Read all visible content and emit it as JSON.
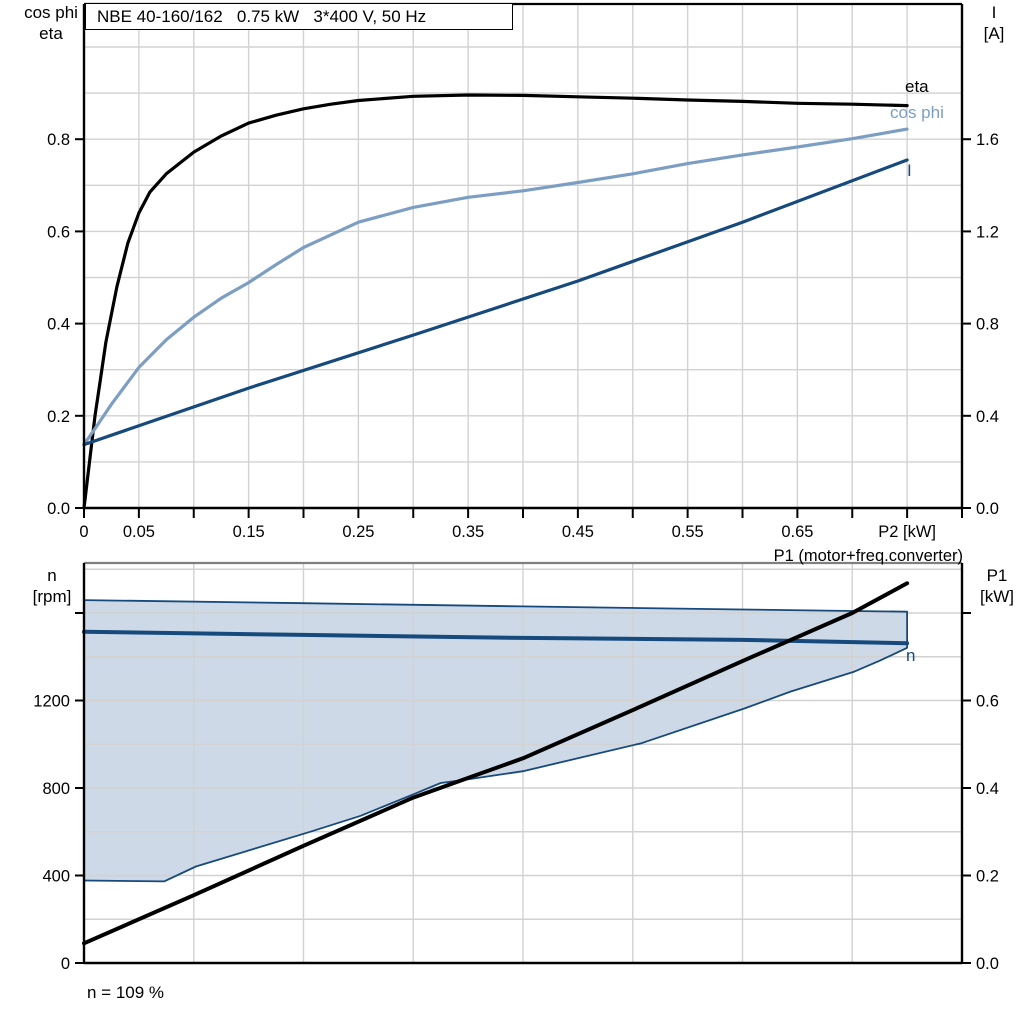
{
  "colors": {
    "black": "#000000",
    "dark_blue": "#16497C",
    "light_blue": "#7D9EC3",
    "grid": "#D2D2D2",
    "area_fill": "#CDD9E6",
    "frame_gray": "#7F7F7F"
  },
  "header": {
    "title": "NBE 40-160/162   0.75 kW   3*400 V, 50 Hz"
  },
  "top_chart": {
    "left_axis_title": [
      "cos phi",
      "eta"
    ],
    "right_axis_title": [
      "I",
      "[A]"
    ],
    "curve_labels": {
      "eta": "eta",
      "cos_phi": "cos phi",
      "current": "I"
    }
  },
  "bottom_chart": {
    "left_axis_title": [
      "n",
      "[rpm]"
    ],
    "right_axis_title": [
      "P1",
      "[kW]"
    ],
    "p1_curve_label": "P1 (motor+freq.converter)",
    "n_curve_label": "n"
  },
  "chart_data": [
    {
      "id": "top",
      "type": "line",
      "title": "NBE 40-160/162   0.75 kW   3*400 V, 50 Hz",
      "xlabel": "P2 [kW]",
      "x_range": [
        0,
        0.8
      ],
      "x_grid_step": 0.05,
      "x_tick_step": 0.05,
      "x_ticks": [
        {
          "value": 0,
          "label": "0"
        },
        {
          "value": 0.05,
          "label": "0.05"
        },
        {
          "value": 0.15,
          "label": "0.15"
        },
        {
          "value": 0.25,
          "label": "0.25"
        },
        {
          "value": 0.35,
          "label": "0.35"
        },
        {
          "value": 0.45,
          "label": "0.45"
        },
        {
          "value": 0.55,
          "label": "0.55"
        },
        {
          "value": 0.65,
          "label": "0.65"
        },
        {
          "value": 0.75,
          "label": "P2 [kW]"
        }
      ],
      "left_axis": {
        "title": "cos phi / eta",
        "max": 1.0933,
        "grid_step": 0.1,
        "tick_values": [
          0,
          0.2,
          0.4,
          0.6,
          0.8
        ],
        "ticks": [
          "0.0",
          "0.2",
          "0.4",
          "0.6",
          "0.8"
        ]
      },
      "right_axis": {
        "title": "I [A]",
        "max": 2.1866,
        "tick_values": [
          0,
          0.4,
          0.8,
          1.2,
          1.6
        ],
        "ticks": [
          "0.0",
          "0.4",
          "0.8",
          "1.2",
          "1.6"
        ]
      },
      "series": [
        {
          "name": "eta",
          "axis": "left",
          "color_key": "black",
          "width": 3.2,
          "points": [
            [
              0,
              0
            ],
            [
              0.005,
              0.1
            ],
            [
              0.01,
              0.2
            ],
            [
              0.015,
              0.28
            ],
            [
              0.02,
              0.36
            ],
            [
              0.03,
              0.48
            ],
            [
              0.04,
              0.575
            ],
            [
              0.05,
              0.64
            ],
            [
              0.06,
              0.685
            ],
            [
              0.075,
              0.725
            ],
            [
              0.1,
              0.772
            ],
            [
              0.125,
              0.807
            ],
            [
              0.15,
              0.835
            ],
            [
              0.175,
              0.852
            ],
            [
              0.2,
              0.866
            ],
            [
              0.225,
              0.876
            ],
            [
              0.25,
              0.884
            ],
            [
              0.3,
              0.893
            ],
            [
              0.35,
              0.896
            ],
            [
              0.4,
              0.895
            ],
            [
              0.45,
              0.892
            ],
            [
              0.5,
              0.889
            ],
            [
              0.55,
              0.885
            ],
            [
              0.6,
              0.882
            ],
            [
              0.65,
              0.878
            ],
            [
              0.7,
              0.876
            ],
            [
              0.75,
              0.873
            ]
          ]
        },
        {
          "name": "cos phi",
          "axis": "left",
          "color_key": "light_blue",
          "width": 3.2,
          "points": [
            [
              0,
              0.138
            ],
            [
              0.01,
              0.172
            ],
            [
              0.025,
              0.225
            ],
            [
              0.05,
              0.305
            ],
            [
              0.075,
              0.365
            ],
            [
              0.1,
              0.414
            ],
            [
              0.125,
              0.455
            ],
            [
              0.15,
              0.489
            ],
            [
              0.175,
              0.528
            ],
            [
              0.2,
              0.565
            ],
            [
              0.25,
              0.62
            ],
            [
              0.3,
              0.652
            ],
            [
              0.35,
              0.674
            ],
            [
              0.4,
              0.688
            ],
            [
              0.45,
              0.706
            ],
            [
              0.5,
              0.725
            ],
            [
              0.55,
              0.747
            ],
            [
              0.6,
              0.766
            ],
            [
              0.65,
              0.783
            ],
            [
              0.7,
              0.801
            ],
            [
              0.75,
              0.822
            ]
          ]
        },
        {
          "name": "I",
          "axis": "right",
          "color_key": "dark_blue",
          "width": 3.2,
          "points": [
            [
              0,
              0.275
            ],
            [
              0.15,
              0.52
            ],
            [
              0.3,
              0.75
            ],
            [
              0.45,
              0.985
            ],
            [
              0.6,
              1.24
            ],
            [
              0.75,
              1.51
            ]
          ]
        }
      ]
    },
    {
      "id": "bottom",
      "type": "line",
      "xlabel": "",
      "x_range": [
        0,
        0.8
      ],
      "x_grid_step": 0.1,
      "x_tick_step": null,
      "x_ticks": [],
      "left_axis": {
        "title": "n [rpm]",
        "max": 1828.6,
        "grid_step": 200,
        "tick_values": [
          0,
          400,
          800,
          1200
        ],
        "ticks": [
          "0",
          "400",
          "800",
          "1200"
        ],
        "unlabeled_tick_values": [
          1600
        ]
      },
      "right_axis": {
        "title": "P1 [kW]",
        "max": 0.9143,
        "tick_values": [
          0,
          0.2,
          0.4,
          0.6
        ],
        "ticks": [
          "0.0",
          "0.2",
          "0.4",
          "0.6"
        ],
        "unlabeled_tick_values": [
          0.8
        ]
      },
      "area": {
        "name": "speed-operating-range",
        "fill_key": "area_fill",
        "edge_color_key": "dark_blue",
        "edge_width": 1.8,
        "upper": [
          [
            0,
            1659
          ],
          [
            0.2,
            1645
          ],
          [
            0.4,
            1630
          ],
          [
            0.6,
            1616
          ],
          [
            0.75,
            1606
          ]
        ],
        "lower": [
          [
            0,
            377
          ],
          [
            0.073,
            373
          ],
          [
            0.102,
            441
          ],
          [
            0.206,
            600
          ],
          [
            0.252,
            673
          ],
          [
            0.301,
            773
          ],
          [
            0.325,
            823
          ],
          [
            0.352,
            841
          ],
          [
            0.4,
            877
          ],
          [
            0.508,
            1005
          ],
          [
            0.602,
            1164
          ],
          [
            0.644,
            1241
          ],
          [
            0.702,
            1332
          ],
          [
            0.725,
            1382
          ],
          [
            0.75,
            1441
          ]
        ]
      },
      "series": [
        {
          "name": "n",
          "axis": "left",
          "color_key": "dark_blue",
          "width": 4,
          "points": [
            [
              0,
              1514
            ],
            [
              0.2,
              1500
            ],
            [
              0.4,
              1486
            ],
            [
              0.6,
              1477
            ],
            [
              0.75,
              1462
            ]
          ]
        },
        {
          "name": "P1 (motor+freq.converter)",
          "axis": "right",
          "color_key": "black",
          "width": 4,
          "points": [
            [
              0,
              0.045
            ],
            [
              0.1,
              0.155
            ],
            [
              0.2,
              0.268
            ],
            [
              0.3,
              0.378
            ],
            [
              0.4,
              0.468
            ],
            [
              0.5,
              0.578
            ],
            [
              0.6,
              0.69
            ],
            [
              0.7,
              0.8
            ],
            [
              0.75,
              0.868
            ]
          ]
        }
      ],
      "annotation": "n = 109 %"
    }
  ]
}
